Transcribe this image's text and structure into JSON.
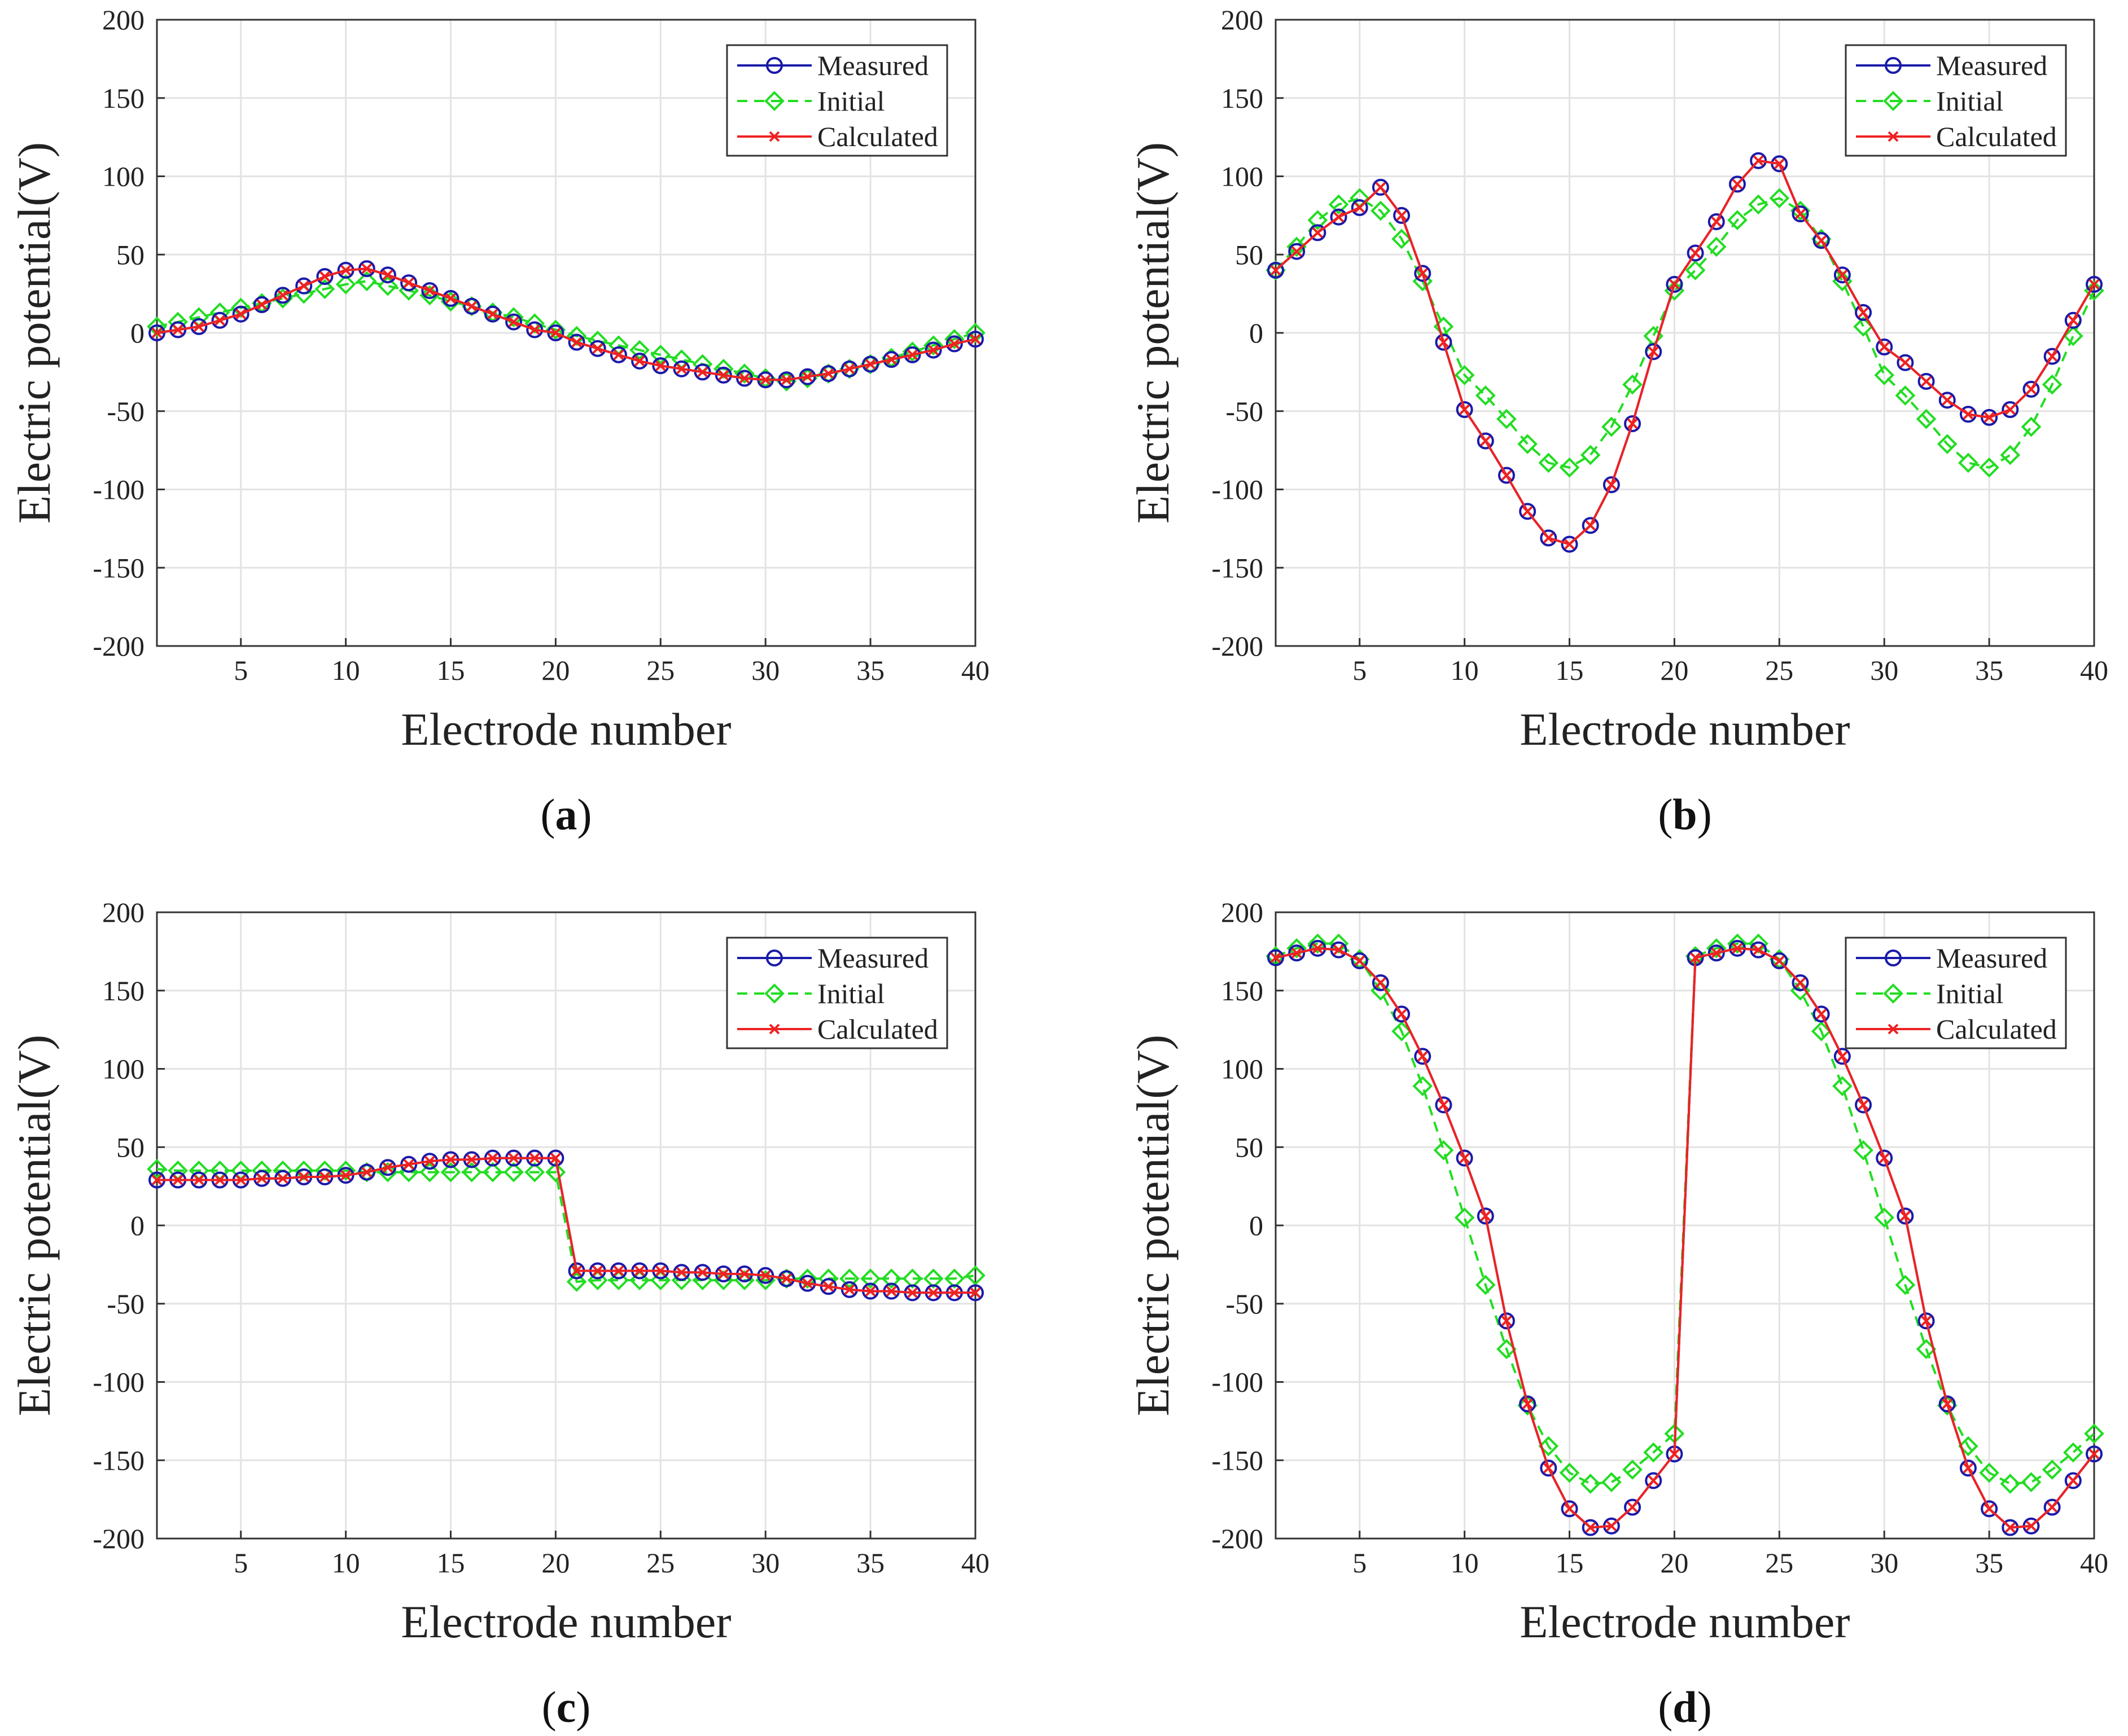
{
  "chart_data": [
    {
      "type": "line",
      "panel": "a",
      "caption_open": "(",
      "caption_letter": "a",
      "caption_close": ")",
      "xlabel": "Electrode number",
      "ylabel": "Electric potential(V)",
      "xlim": [
        1,
        40
      ],
      "ylim": [
        -200,
        200
      ],
      "xticks": [
        5,
        10,
        15,
        20,
        25,
        30,
        35,
        40
      ],
      "yticks": [
        -200,
        -150,
        -100,
        -50,
        0,
        50,
        100,
        150,
        200
      ],
      "grid": true,
      "legend_position": "top-right",
      "legend": [
        "Measured",
        "Initial",
        "Calculated"
      ],
      "x": [
        1,
        2,
        3,
        4,
        5,
        6,
        7,
        8,
        9,
        10,
        11,
        12,
        13,
        14,
        15,
        16,
        17,
        18,
        19,
        20,
        21,
        22,
        23,
        24,
        25,
        26,
        27,
        28,
        29,
        30,
        31,
        32,
        33,
        34,
        35,
        36,
        37,
        38,
        39,
        40
      ],
      "series": [
        {
          "name": "Measured",
          "color": "#1a1aaa",
          "marker": "circle",
          "dash": "solid",
          "values": [
            0,
            2,
            4,
            8,
            12,
            18,
            24,
            30,
            36,
            40,
            41,
            37,
            32,
            27,
            22,
            17,
            12,
            7,
            2,
            0,
            -6,
            -10,
            -14,
            -18,
            -21,
            -23,
            -25,
            -27,
            -29,
            -30,
            -30,
            -28,
            -26,
            -23,
            -20,
            -17,
            -14,
            -11,
            -7,
            -4
          ]
        },
        {
          "name": "Initial",
          "color": "#22dd22",
          "marker": "diamond",
          "dash": "dashed",
          "values": [
            4,
            7,
            10,
            13,
            16,
            19,
            22,
            25,
            28,
            31,
            33,
            30,
            27,
            24,
            20,
            17,
            13,
            10,
            6,
            2,
            -2,
            -5,
            -8,
            -11,
            -14,
            -17,
            -20,
            -23,
            -26,
            -29,
            -31,
            -29,
            -26,
            -23,
            -20,
            -16,
            -12,
            -8,
            -4,
            0
          ]
        },
        {
          "name": "Calculated",
          "color": "#ee2222",
          "marker": "x",
          "dash": "solid",
          "values": [
            0,
            2,
            4,
            8,
            12,
            18,
            24,
            30,
            36,
            40,
            41,
            37,
            32,
            27,
            22,
            17,
            12,
            7,
            2,
            0,
            -6,
            -10,
            -14,
            -18,
            -21,
            -23,
            -25,
            -27,
            -29,
            -30,
            -30,
            -28,
            -26,
            -23,
            -20,
            -17,
            -14,
            -11,
            -7,
            -4
          ]
        }
      ]
    },
    {
      "type": "line",
      "panel": "b",
      "caption_open": "(",
      "caption_letter": "b",
      "caption_close": ")",
      "xlabel": "Electrode number",
      "ylabel": "Electric potential(V)",
      "xlim": [
        1,
        40
      ],
      "ylim": [
        -200,
        200
      ],
      "xticks": [
        5,
        10,
        15,
        20,
        25,
        30,
        35,
        40
      ],
      "yticks": [
        -200,
        -150,
        -100,
        -50,
        0,
        50,
        100,
        150,
        200
      ],
      "grid": true,
      "legend_position": "top-right",
      "legend": [
        "Measured",
        "Initial",
        "Calculated"
      ],
      "x": [
        1,
        2,
        3,
        4,
        5,
        6,
        7,
        8,
        9,
        10,
        11,
        12,
        13,
        14,
        15,
        16,
        17,
        18,
        19,
        20,
        21,
        22,
        23,
        24,
        25,
        26,
        27,
        28,
        29,
        30,
        31,
        32,
        33,
        34,
        35,
        36,
        37,
        38,
        39,
        40
      ],
      "series": [
        {
          "name": "Measured",
          "color": "#1a1aaa",
          "marker": "circle",
          "dash": "solid",
          "values": [
            40,
            52,
            64,
            74,
            80,
            93,
            75,
            38,
            -6,
            -49,
            -69,
            -91,
            -114,
            -131,
            -135,
            -123,
            -97,
            -58,
            -12,
            31,
            51,
            71,
            95,
            110,
            108,
            76,
            59,
            37,
            13,
            -9,
            -19,
            -31,
            -43,
            -52,
            -54,
            -49,
            -36,
            -15,
            8,
            31
          ]
        },
        {
          "name": "Initial",
          "color": "#22dd22",
          "marker": "diamond",
          "dash": "dashed",
          "values": [
            40,
            55,
            72,
            82,
            86,
            78,
            60,
            33,
            4,
            -27,
            -40,
            -55,
            -71,
            -83,
            -86,
            -78,
            -60,
            -33,
            -2,
            27,
            40,
            55,
            72,
            82,
            86,
            78,
            60,
            33,
            4,
            -27,
            -40,
            -55,
            -71,
            -83,
            -86,
            -78,
            -60,
            -33,
            -2,
            27
          ]
        },
        {
          "name": "Calculated",
          "color": "#ee2222",
          "marker": "x",
          "dash": "solid",
          "values": [
            40,
            52,
            64,
            74,
            80,
            93,
            75,
            38,
            -6,
            -49,
            -69,
            -91,
            -114,
            -131,
            -135,
            -123,
            -97,
            -58,
            -12,
            31,
            51,
            71,
            95,
            110,
            108,
            76,
            59,
            37,
            13,
            -9,
            -19,
            -31,
            -43,
            -52,
            -54,
            -49,
            -36,
            -15,
            8,
            31
          ]
        }
      ]
    },
    {
      "type": "line",
      "panel": "c",
      "caption_open": "(",
      "caption_letter": "c",
      "caption_close": ")",
      "xlabel": "Electrode number",
      "ylabel": "Electric potential(V)",
      "xlim": [
        1,
        40
      ],
      "ylim": [
        -200,
        200
      ],
      "xticks": [
        5,
        10,
        15,
        20,
        25,
        30,
        35,
        40
      ],
      "yticks": [
        -200,
        -150,
        -100,
        -50,
        0,
        50,
        100,
        150,
        200
      ],
      "grid": true,
      "legend_position": "top-right",
      "legend": [
        "Measured",
        "Initial",
        "Calculated"
      ],
      "x": [
        1,
        2,
        3,
        4,
        5,
        6,
        7,
        8,
        9,
        10,
        11,
        12,
        13,
        14,
        15,
        16,
        17,
        18,
        19,
        20,
        21,
        22,
        23,
        24,
        25,
        26,
        27,
        28,
        29,
        30,
        31,
        32,
        33,
        34,
        35,
        36,
        37,
        38,
        39,
        40
      ],
      "series": [
        {
          "name": "Measured",
          "color": "#1a1aaa",
          "marker": "circle",
          "dash": "solid",
          "values": [
            29,
            29,
            29,
            29,
            29,
            30,
            30,
            31,
            31,
            32,
            34,
            37,
            39,
            41,
            42,
            42,
            43,
            43,
            43,
            43,
            -29,
            -29,
            -29,
            -29,
            -29,
            -30,
            -30,
            -31,
            -31,
            -32,
            -34,
            -37,
            -39,
            -41,
            -42,
            -42,
            -43,
            -43,
            -43,
            -43
          ]
        },
        {
          "name": "Initial",
          "color": "#22dd22",
          "marker": "diamond",
          "dash": "dashed",
          "values": [
            36,
            35,
            35,
            35,
            35,
            35,
            35,
            35,
            35,
            35,
            34,
            34,
            34,
            34,
            34,
            34,
            34,
            34,
            34,
            34,
            -36,
            -35,
            -35,
            -35,
            -35,
            -35,
            -35,
            -35,
            -35,
            -35,
            -34,
            -34,
            -34,
            -34,
            -34,
            -34,
            -34,
            -34,
            -34,
            -32
          ]
        },
        {
          "name": "Calculated",
          "color": "#ee2222",
          "marker": "x",
          "dash": "solid",
          "values": [
            29,
            29,
            29,
            29,
            29,
            30,
            30,
            31,
            31,
            32,
            34,
            37,
            39,
            41,
            42,
            42,
            43,
            43,
            43,
            43,
            -29,
            -29,
            -29,
            -29,
            -29,
            -30,
            -30,
            -31,
            -31,
            -32,
            -34,
            -37,
            -39,
            -41,
            -42,
            -42,
            -43,
            -43,
            -43,
            -43
          ]
        }
      ]
    },
    {
      "type": "line",
      "panel": "d",
      "caption_open": "(",
      "caption_letter": "d",
      "caption_close": ")",
      "xlabel": "Electrode number",
      "ylabel": "Electric potential(V)",
      "xlim": [
        1,
        40
      ],
      "ylim": [
        -200,
        200
      ],
      "xticks": [
        5,
        10,
        15,
        20,
        25,
        30,
        35,
        40
      ],
      "yticks": [
        -200,
        -150,
        -100,
        -50,
        0,
        50,
        100,
        150,
        200
      ],
      "grid": true,
      "legend_position": "top-right",
      "legend": [
        "Measured",
        "Initial",
        "Calculated"
      ],
      "x": [
        1,
        2,
        3,
        4,
        5,
        6,
        7,
        8,
        9,
        10,
        11,
        12,
        13,
        14,
        15,
        16,
        17,
        18,
        19,
        20,
        21,
        22,
        23,
        24,
        25,
        26,
        27,
        28,
        29,
        30,
        31,
        32,
        33,
        34,
        35,
        36,
        37,
        38,
        39,
        40
      ],
      "series": [
        {
          "name": "Measured",
          "color": "#1a1aaa",
          "marker": "circle",
          "dash": "solid",
          "values": [
            171,
            174,
            177,
            176,
            169,
            155,
            135,
            108,
            77,
            43,
            6,
            -61,
            -114,
            -155,
            -181,
            -193,
            -192,
            -180,
            -163,
            -146,
            171,
            174,
            177,
            176,
            169,
            155,
            135,
            108,
            77,
            43,
            6,
            -61,
            -114,
            -155,
            -181,
            -193,
            -192,
            -180,
            -163,
            -146
          ]
        },
        {
          "name": "Initial",
          "color": "#22dd22",
          "marker": "diamond",
          "dash": "dashed",
          "values": [
            172,
            177,
            180,
            180,
            170,
            150,
            124,
            89,
            48,
            5,
            -38,
            -79,
            -115,
            -141,
            -158,
            -165,
            -164,
            -156,
            -145,
            -133,
            172,
            177,
            180,
            180,
            170,
            150,
            124,
            89,
            48,
            5,
            -38,
            -79,
            -115,
            -141,
            -158,
            -165,
            -164,
            -156,
            -145,
            -133
          ]
        },
        {
          "name": "Calculated",
          "color": "#ee2222",
          "marker": "x",
          "dash": "solid",
          "values": [
            171,
            174,
            177,
            176,
            169,
            155,
            135,
            108,
            77,
            43,
            6,
            -61,
            -114,
            -155,
            -181,
            -193,
            -192,
            -180,
            -163,
            -146,
            171,
            174,
            177,
            176,
            169,
            155,
            135,
            108,
            77,
            43,
            6,
            -61,
            -114,
            -155,
            -181,
            -193,
            -192,
            -180,
            -163,
            -146
          ]
        }
      ]
    }
  ]
}
